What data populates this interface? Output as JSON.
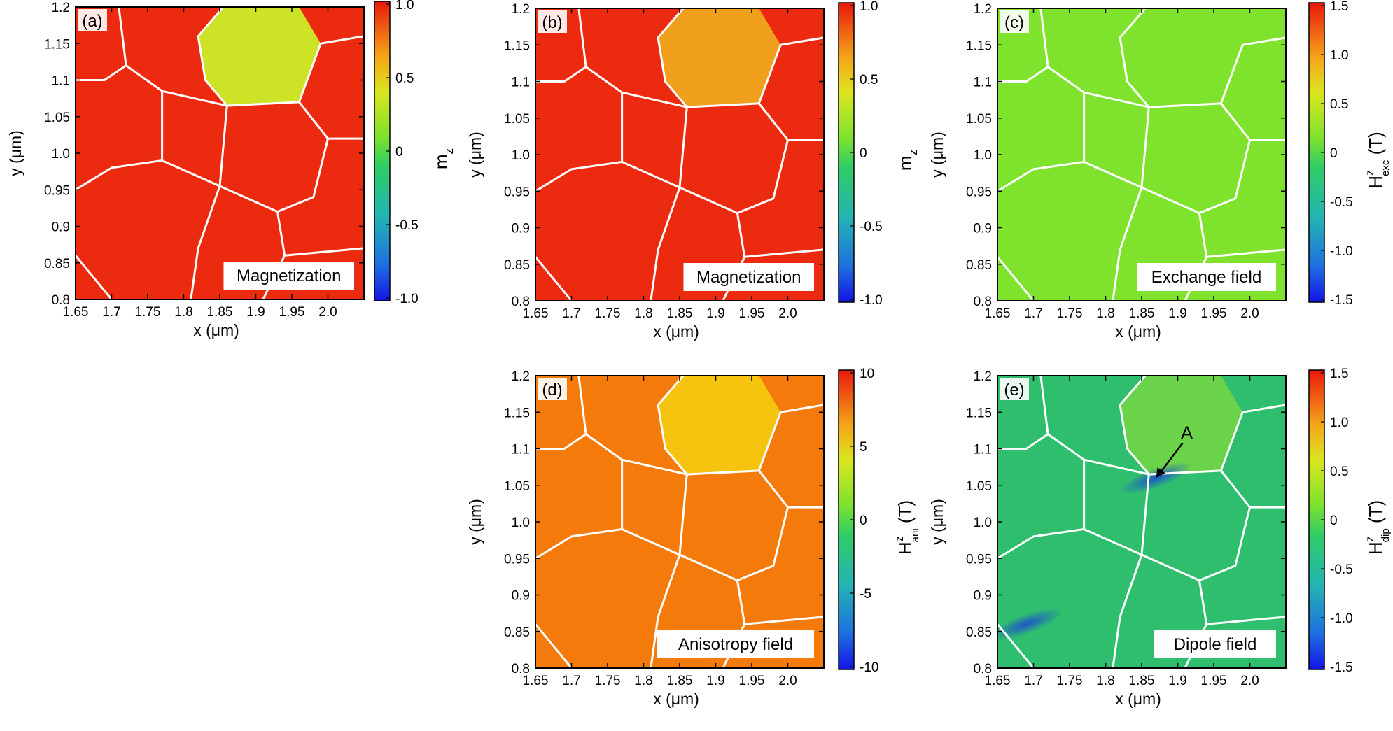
{
  "figure": {
    "panels": [
      {
        "id": "a",
        "panel_label": "(a)",
        "field_label": "Magnetization",
        "fill": "#ec2a10",
        "special_fill": "#cce327",
        "colorbar": {
          "ticks": [
            "1.0",
            "0.5",
            "0",
            "-0.5",
            "-1.0"
          ],
          "label": "m",
          "label_sub": "z",
          "label_sup": ""
        }
      },
      {
        "id": "b",
        "panel_label": "(b)",
        "field_label": "Magnetization",
        "fill": "#ec2a10",
        "special_fill": "#f1a01e",
        "colorbar": {
          "ticks": [
            "1.0",
            "0.5",
            "0",
            "-0.5",
            "-1.0"
          ],
          "label": "m",
          "label_sub": "z",
          "label_sup": ""
        }
      },
      {
        "id": "c",
        "panel_label": "(c)",
        "field_label": "Exchange field",
        "fill": "#7fe22d",
        "special_fill": "#7fe22d",
        "colorbar": {
          "ticks": [
            "1.5",
            "1.0",
            "0.5",
            "0",
            "-0.5",
            "-1.0",
            "-1.5"
          ],
          "label": "H",
          "label_sub": "exc",
          "label_sup": "z",
          "unit": "(T)"
        }
      },
      {
        "id": "d",
        "panel_label": "(d)",
        "field_label": "Anisotropy field",
        "fill": "#f47a0c",
        "special_fill": "#f6c40e",
        "colorbar": {
          "ticks": [
            "10",
            "5",
            "0",
            "-5",
            "-10"
          ],
          "label": "H",
          "label_sub": "ani",
          "label_sup": "z",
          "unit": "(T)"
        }
      },
      {
        "id": "e",
        "panel_label": "(e)",
        "field_label": "Dipole field",
        "fill": "#2fbd6e",
        "special_fill": "#6bd34a",
        "annotation": "A",
        "colorbar": {
          "ticks": [
            "1.5",
            "1.0",
            "0.5",
            "0",
            "-0.5",
            "-1.0",
            "-1.5"
          ],
          "label": "H",
          "label_sub": "dip",
          "label_sup": "z",
          "unit": "(T)"
        }
      }
    ]
  },
  "chart_data": {
    "type": "heatmap",
    "xlabel": "x (μm)",
    "ylabel": "y (μm)",
    "xlim": [
      1.65,
      2.05
    ],
    "ylim": [
      0.8,
      1.2
    ],
    "x_ticks": [
      "1.65",
      "1.7",
      "1.75",
      "1.8",
      "1.85",
      "1.9",
      "1.95",
      "2.0"
    ],
    "x_tick_values": [
      1.65,
      1.7,
      1.75,
      1.8,
      1.85,
      1.9,
      1.95,
      2.0
    ],
    "y_ticks": [
      "1.2",
      "1.15",
      "1.1",
      "1.05",
      "1.0",
      "0.95",
      "0.9",
      "0.85",
      "0.8"
    ],
    "y_tick_values": [
      1.2,
      1.15,
      1.1,
      1.05,
      1.0,
      0.95,
      0.9,
      0.85,
      0.8
    ],
    "grain_boundaries": [
      [
        [
          1.65,
          1.1
        ],
        [
          1.69,
          1.1
        ],
        [
          1.72,
          1.12
        ],
        [
          1.71,
          1.2
        ]
      ],
      [
        [
          1.72,
          1.12
        ],
        [
          1.77,
          1.085
        ],
        [
          1.86,
          1.065
        ]
      ],
      [
        [
          1.86,
          1.065
        ],
        [
          1.83,
          1.1
        ],
        [
          1.82,
          1.16
        ],
        [
          1.855,
          1.2
        ]
      ],
      [
        [
          1.86,
          1.065
        ],
        [
          1.96,
          1.07
        ],
        [
          1.99,
          1.15
        ],
        [
          2.05,
          1.16
        ]
      ],
      [
        [
          1.77,
          1.085
        ],
        [
          1.77,
          0.99
        ],
        [
          1.85,
          0.955
        ]
      ],
      [
        [
          1.86,
          1.065
        ],
        [
          1.85,
          0.955
        ],
        [
          1.93,
          0.92
        ]
      ],
      [
        [
          1.96,
          1.07
        ],
        [
          2.0,
          1.02
        ],
        [
          1.98,
          0.94
        ],
        [
          1.93,
          0.92
        ]
      ],
      [
        [
          2.0,
          1.02
        ],
        [
          2.05,
          1.02
        ]
      ],
      [
        [
          1.65,
          0.95
        ],
        [
          1.7,
          0.98
        ],
        [
          1.77,
          0.99
        ]
      ],
      [
        [
          1.85,
          0.955
        ],
        [
          1.82,
          0.87
        ],
        [
          1.81,
          0.8
        ]
      ],
      [
        [
          1.93,
          0.92
        ],
        [
          1.94,
          0.86
        ],
        [
          1.91,
          0.8
        ]
      ],
      [
        [
          1.94,
          0.86
        ],
        [
          2.05,
          0.87
        ]
      ],
      [
        [
          1.65,
          0.86
        ],
        [
          1.7,
          0.8
        ]
      ]
    ],
    "special_grain": [
      [
        1.86,
        1.065
      ],
      [
        1.83,
        1.1
      ],
      [
        1.82,
        1.16
      ],
      [
        1.855,
        1.2
      ],
      [
        1.96,
        1.2
      ],
      [
        1.99,
        1.15
      ],
      [
        1.96,
        1.07
      ]
    ],
    "dipole_hotspots": [
      {
        "x": 1.87,
        "y": 1.06,
        "value": -1.5
      },
      {
        "x": 1.69,
        "y": 0.86,
        "value": -1.4
      }
    ]
  }
}
